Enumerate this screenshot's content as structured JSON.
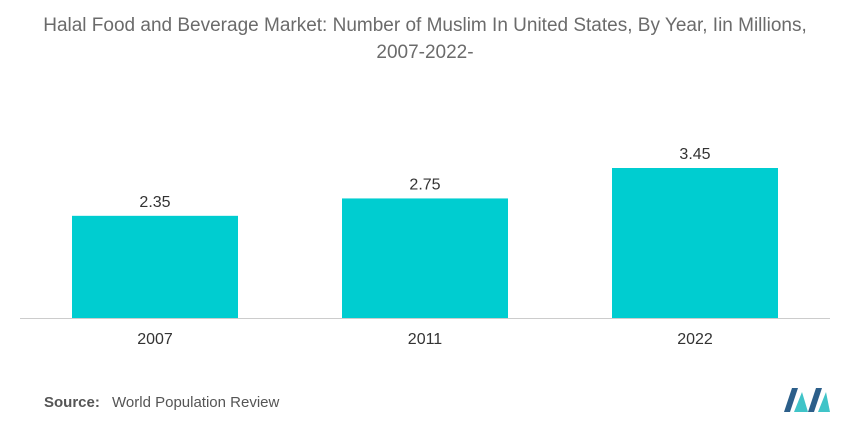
{
  "chart_data": {
    "type": "bar",
    "title_line1": "Halal Food and Beverage Market: Number of Muslim In United States, By Year, Iin Millions,",
    "title_line2": "2007-2022-",
    "categories": [
      "2007",
      "2011",
      "2022"
    ],
    "values": [
      2.35,
      2.75,
      3.45
    ],
    "value_labels": [
      "2.35",
      "2.75",
      "3.45"
    ],
    "xlabel": "",
    "ylabel": "",
    "ylim": [
      0,
      3.45
    ],
    "grid": false,
    "legend": "none",
    "bar_color": "#00cdd0"
  },
  "source": {
    "label": "Source:",
    "text": "World Population Review"
  },
  "colors": {
    "title": "#6b6b6b",
    "text": "#333333",
    "axis": "#cccccc",
    "logo_dark": "#2c5f8a",
    "logo_light": "#40c4c8"
  },
  "logo": {
    "icon": "mordor-logo-icon"
  }
}
